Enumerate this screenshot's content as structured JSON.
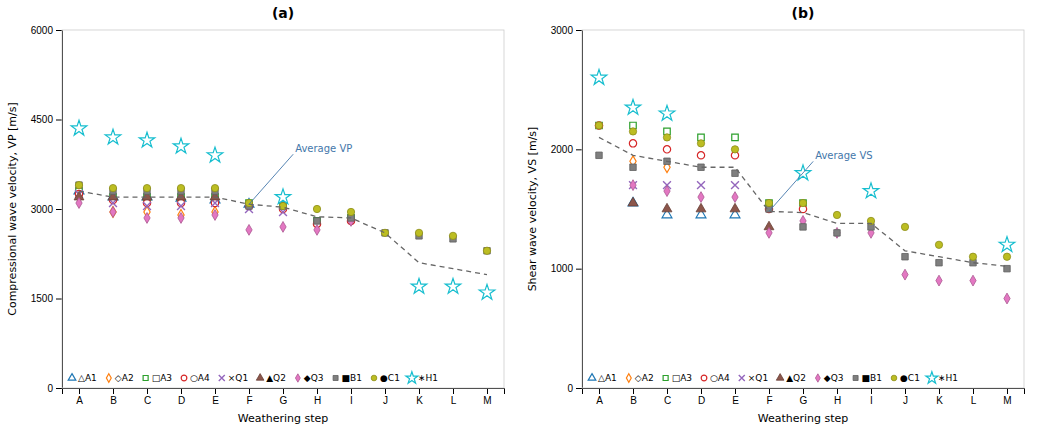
{
  "chart_data": [
    {
      "type": "scatter",
      "title": "(a)",
      "x_label": "Weathering step",
      "y_label": "Compressional wave velocity, VP [m/s]",
      "categories": [
        "A",
        "B",
        "C",
        "D",
        "E",
        "F",
        "G",
        "H",
        "I",
        "J",
        "K",
        "L",
        "M"
      ],
      "ylim": [
        0,
        6000
      ],
      "yticks": [
        0,
        1500,
        3000,
        4500,
        6000
      ],
      "grid": false,
      "legend": "lower left",
      "series": [
        {
          "name": "△A1",
          "marker": "triangle-open",
          "values": [
            3300,
            3200,
            3200,
            3180,
            3150,
            3080,
            null,
            null,
            null,
            null,
            null,
            null,
            null
          ]
        },
        {
          "name": "◇A2",
          "marker": "diamond-open",
          "values": [
            3200,
            2950,
            2950,
            2900,
            2950,
            null,
            null,
            null,
            null,
            null,
            null,
            null,
            null
          ]
        },
        {
          "name": "□A3",
          "marker": "square-open",
          "values": [
            3300,
            3200,
            3200,
            3200,
            3200,
            3100,
            3050,
            2800,
            2850,
            null,
            null,
            null,
            null
          ]
        },
        {
          "name": "○A4",
          "marker": "circle-open",
          "values": [
            3250,
            3150,
            3100,
            3100,
            3100,
            3050,
            3000,
            2750,
            2800,
            null,
            null,
            null,
            null
          ]
        },
        {
          "name": "×Q1",
          "marker": "x",
          "values": [
            3250,
            3100,
            3050,
            3050,
            3100,
            3000,
            2950,
            null,
            null,
            null,
            null,
            null,
            null
          ]
        },
        {
          "name": "▲Q2",
          "marker": "triangle",
          "values": [
            3200,
            3200,
            3200,
            3200,
            3200,
            null,
            null,
            null,
            null,
            null,
            null,
            null,
            null
          ]
        },
        {
          "name": "◆Q3",
          "marker": "diamond",
          "values": [
            3100,
            2950,
            2850,
            2850,
            2900,
            2650,
            2700,
            2650,
            2800,
            null,
            null,
            null,
            null
          ]
        },
        {
          "name": "■B1",
          "marker": "square",
          "values": [
            3400,
            3300,
            3300,
            3300,
            3300,
            3050,
            3050,
            2800,
            2850,
            2600,
            2550,
            2500,
            2300
          ]
        },
        {
          "name": "●C1",
          "marker": "circle",
          "values": [
            3400,
            3350,
            3350,
            3350,
            3350,
            3100,
            3050,
            3000,
            2950,
            2600,
            2600,
            2550,
            2300
          ]
        },
        {
          "name": "∗H1",
          "marker": "star-open",
          "values": [
            4350,
            4200,
            4150,
            4050,
            3900,
            null,
            3200,
            null,
            null,
            null,
            1700,
            1700,
            1600
          ]
        },
        {
          "name": "Average VP",
          "type": "line",
          "line_style": "dashed",
          "color": "#666666",
          "values": [
            3300,
            3200,
            3200,
            3200,
            3200,
            3080,
            3030,
            2870,
            2850,
            2600,
            2100,
            2000,
            1900
          ]
        }
      ]
    },
    {
      "type": "scatter",
      "title": "(b)",
      "x_label": "Weathering step",
      "y_label": "Shear wave velocity, VS [m/s]",
      "categories": [
        "A",
        "B",
        "C",
        "D",
        "E",
        "F",
        "G",
        "H",
        "I",
        "J",
        "K",
        "L",
        "M"
      ],
      "ylim": [
        0,
        3000
      ],
      "yticks": [
        0,
        1000,
        2000,
        3000
      ],
      "grid": false,
      "legend": "lower left",
      "series": [
        {
          "name": "△A1",
          "marker": "triangle-open",
          "values": [
            null,
            1550,
            1450,
            1450,
            1450,
            null,
            null,
            null,
            null,
            null,
            null,
            null,
            null
          ]
        },
        {
          "name": "◇A2",
          "marker": "diamond-open",
          "values": [
            null,
            1900,
            1850,
            null,
            null,
            null,
            null,
            null,
            null,
            null,
            null,
            null,
            null
          ]
        },
        {
          "name": "□A3",
          "marker": "square-open",
          "values": [
            2200,
            2200,
            2150,
            2100,
            2100,
            1550,
            1550,
            null,
            null,
            null,
            null,
            null,
            null
          ]
        },
        {
          "name": "○A4",
          "marker": "circle-open",
          "values": [
            2200,
            2050,
            2000,
            1950,
            1950,
            1500,
            1500,
            null,
            null,
            null,
            null,
            null,
            null
          ]
        },
        {
          "name": "×Q1",
          "marker": "x",
          "values": [
            null,
            1700,
            1700,
            1700,
            1700,
            null,
            null,
            null,
            null,
            null,
            null,
            null,
            null
          ]
        },
        {
          "name": "▲Q2",
          "marker": "triangle",
          "values": [
            null,
            1550,
            1500,
            1500,
            1500,
            1350,
            null,
            null,
            null,
            null,
            null,
            null,
            null
          ]
        },
        {
          "name": "◆Q3",
          "marker": "diamond",
          "values": [
            null,
            1700,
            1650,
            1600,
            1600,
            1300,
            1400,
            1300,
            1300,
            950,
            900,
            900,
            750
          ]
        },
        {
          "name": "■B1",
          "marker": "square",
          "values": [
            1950,
            1850,
            1900,
            1850,
            1800,
            1500,
            1350,
            1300,
            1350,
            1100,
            1050,
            1050,
            1000
          ]
        },
        {
          "name": "●C1",
          "marker": "circle",
          "values": [
            2200,
            2150,
            2100,
            2050,
            2000,
            1550,
            1550,
            1450,
            1400,
            1350,
            1200,
            1100,
            1100
          ]
        },
        {
          "name": "∗H1",
          "marker": "star-open",
          "values": [
            2600,
            2350,
            2300,
            null,
            null,
            null,
            1800,
            null,
            1650,
            null,
            null,
            null,
            1200
          ]
        },
        {
          "name": "Average VS",
          "type": "line",
          "line_style": "dashed",
          "color": "#666666",
          "values": [
            2100,
            1950,
            1900,
            1850,
            1850,
            1480,
            1470,
            1380,
            1380,
            1150,
            1100,
            1050,
            1020
          ]
        }
      ]
    }
  ]
}
